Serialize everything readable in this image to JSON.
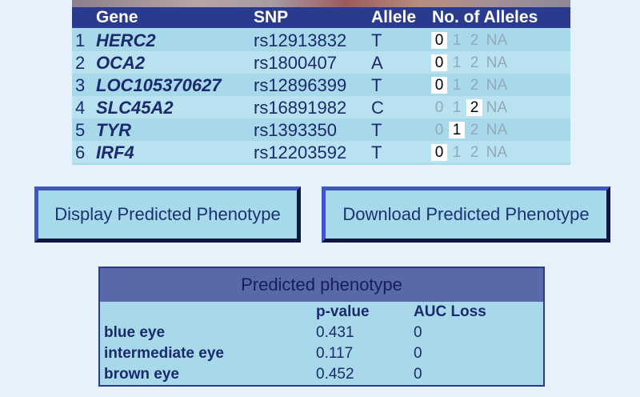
{
  "snp_table": {
    "headers": {
      "gene": "Gene",
      "snp": "SNP",
      "allele": "Allele",
      "count": "No. of Alleles"
    },
    "count_options": [
      "0",
      "1",
      "2",
      "NA"
    ],
    "rows": [
      {
        "num": "1",
        "gene": "HERC2",
        "snp": "rs12913832",
        "allele": "T",
        "selected": "0"
      },
      {
        "num": "2",
        "gene": "OCA2",
        "snp": "rs1800407",
        "allele": "A",
        "selected": "0"
      },
      {
        "num": "3",
        "gene": "LOC105370627",
        "snp": "rs12896399",
        "allele": "T",
        "selected": "0"
      },
      {
        "num": "4",
        "gene": "SLC45A2",
        "snp": "rs16891982",
        "allele": "C",
        "selected": "2"
      },
      {
        "num": "5",
        "gene": "TYR",
        "snp": "rs1393350",
        "allele": "T",
        "selected": "1"
      },
      {
        "num": "6",
        "gene": "IRF4",
        "snp": "rs12203592",
        "allele": "T",
        "selected": "0"
      }
    ]
  },
  "buttons": {
    "display_label": "Display Predicted Phenotype",
    "download_label": "Download Predicted Phenotype"
  },
  "phenotype": {
    "title": "Predicted phenotype",
    "col_pvalue": "p-value",
    "col_auc": "AUC Loss",
    "rows": [
      {
        "label": "blue eye",
        "pvalue": "0.431",
        "auc": "0"
      },
      {
        "label": "intermediate eye",
        "pvalue": "0.117",
        "auc": "0"
      },
      {
        "label": "brown eye",
        "pvalue": "0.452",
        "auc": "0"
      }
    ]
  }
}
